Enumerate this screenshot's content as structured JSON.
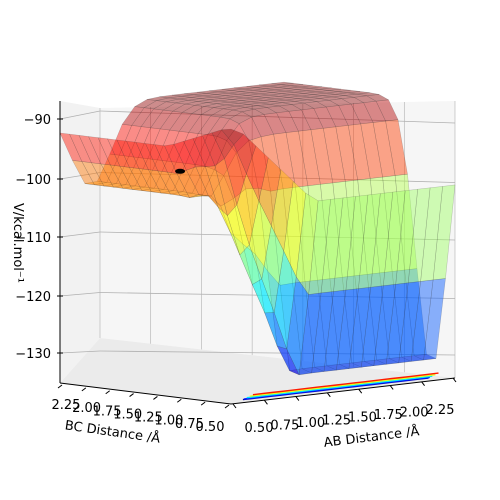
{
  "chart_data": {
    "type": "surface3d",
    "title": "",
    "xlabel": "AB Distance /Å",
    "ylabel": "BC Distance /Å",
    "zlabel": "V/kcal.mol⁻¹",
    "x_ticks": [
      "0.50",
      "0.75",
      "1.00",
      "1.25",
      "1.50",
      "1.75",
      "2.00",
      "2.25"
    ],
    "y_ticks": [
      "2.25",
      "2.00",
      "1.75",
      "1.50",
      "1.25",
      "1.00",
      "0.75",
      "0.50"
    ],
    "z_ticks": [
      "−90",
      "−100",
      "−110",
      "−120",
      "−130"
    ],
    "x_range": [
      0.5,
      2.25
    ],
    "y_range": [
      0.5,
      2.25
    ],
    "z_range": [
      -135,
      -88
    ],
    "colormap": "jet",
    "surface_alpha": 0.45,
    "features": {
      "well_ab": {
        "x": [
          0.9,
          2.25
        ],
        "y": [
          0.5,
          1.2
        ],
        "min_z": -134
      },
      "well_bc": {
        "x": [
          0.5,
          1.2
        ],
        "y": [
          0.9,
          2.25
        ],
        "min_z": -102
      },
      "plateau_z": -88,
      "marker": {
        "x": 1.4,
        "y": 2.2,
        "z": -101
      }
    },
    "grid": true,
    "legend": "none"
  },
  "colors": {
    "pane": "#f2f2f2",
    "grid": "#b0b0b0",
    "axis": "#000000",
    "marker": "#000000"
  }
}
